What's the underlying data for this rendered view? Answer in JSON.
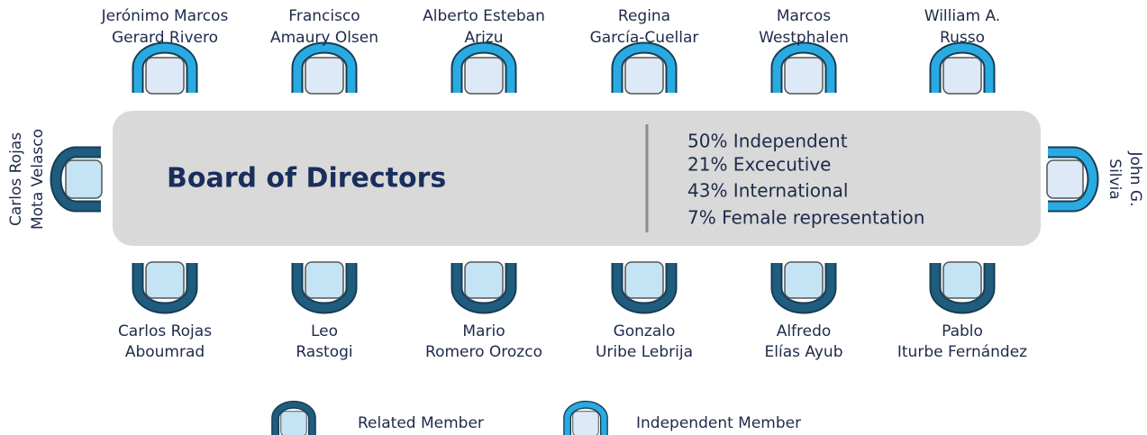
{
  "title": "Board of Directors",
  "stats": [
    "50% Independent",
    "21% Excecutive",
    "43% International",
    "7% Female representation"
  ],
  "top_members": [
    {
      "lines": [
        "Jerónimo Marcos",
        "Gerard Rivero"
      ]
    },
    {
      "lines": [
        "Francisco",
        "Amaury Olsen"
      ]
    },
    {
      "lines": [
        "Alberto Esteban",
        "Arizu"
      ]
    },
    {
      "lines": [
        "Regina",
        "García-Cuellar"
      ]
    },
    {
      "lines": [
        "Marcos",
        "Westphalen"
      ]
    },
    {
      "lines": [
        "William A.",
        "Russo"
      ]
    }
  ],
  "bottom_members": [
    {
      "lines": [
        "Carlos Rojas",
        "Aboumrad"
      ]
    },
    {
      "lines": [
        "Leo",
        "Rastogi"
      ]
    },
    {
      "lines": [
        "Mario",
        "Romero Orozco"
      ]
    },
    {
      "lines": [
        "Gonzalo",
        "Uribe Lebrija"
      ]
    },
    {
      "lines": [
        "Alfredo",
        "Elías Ayub"
      ]
    },
    {
      "lines": [
        "Pablo",
        "Iturbe Fernández"
      ]
    }
  ],
  "left_member": {
    "lines": [
      "Carlos Rojas",
      "Mota Velasco"
    ]
  },
  "right_member": {
    "lines": [
      "John G.",
      "Silvia"
    ]
  },
  "legend": [
    "Related Member",
    "Independent Member"
  ]
}
